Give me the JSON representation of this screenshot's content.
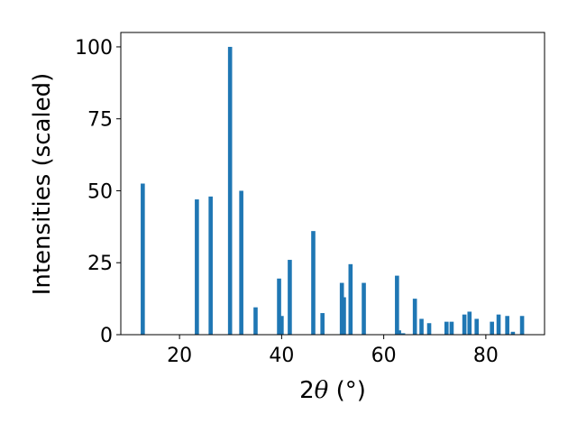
{
  "chart_data": {
    "type": "bar",
    "xlabel_prefix": "2",
    "xlabel_symbol": "θ",
    "xlabel_suffix": " (°)",
    "ylabel": "Intensities (scaled)",
    "xlim": [
      8.5,
      91.5
    ],
    "ylim": [
      0,
      105
    ],
    "xticks": [
      20,
      40,
      60,
      80
    ],
    "yticks": [
      0,
      25,
      50,
      75,
      100
    ],
    "bar_color": "#1f77b4",
    "grid": false,
    "x": [
      12.8,
      23.4,
      26.1,
      29.9,
      32.1,
      34.9,
      39.5,
      40.0,
      41.6,
      46.2,
      48.0,
      51.8,
      52.2,
      53.5,
      56.1,
      62.6,
      63.0,
      63.8,
      66.1,
      67.4,
      68.9,
      72.3,
      73.3,
      75.8,
      76.8,
      78.2,
      81.2,
      82.5,
      84.2,
      85.3,
      87.1
    ],
    "values": [
      52.5,
      47,
      48,
      100,
      50,
      9.5,
      19.5,
      6.5,
      26,
      36,
      7.5,
      18,
      13,
      24.5,
      18,
      20.5,
      1.5,
      0.5,
      12.5,
      5.5,
      4,
      4.5,
      4.5,
      7,
      8,
      5.5,
      4.5,
      7,
      6.5,
      1,
      6.5
    ]
  }
}
